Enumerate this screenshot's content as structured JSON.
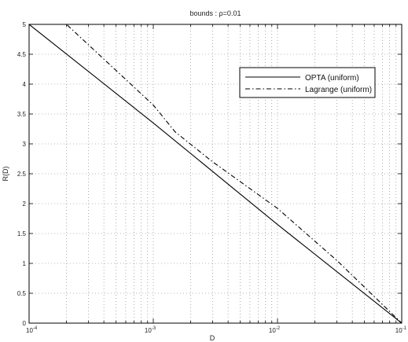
{
  "chart_data": {
    "type": "line",
    "title": "bounds : ρ=0.01",
    "xlabel": "D",
    "ylabel": "R(D)",
    "x_scale": "log",
    "xlim": [
      0.0001,
      0.1
    ],
    "ylim": [
      0,
      5
    ],
    "grid": true,
    "legend_position": "top-right",
    "x_ticks": [
      {
        "value": 0.0001,
        "base": "10",
        "exp": "-4"
      },
      {
        "value": 0.001,
        "base": "10",
        "exp": "-3"
      },
      {
        "value": 0.01,
        "base": "10",
        "exp": "-2"
      },
      {
        "value": 0.1,
        "base": "10",
        "exp": "-1"
      }
    ],
    "y_ticks": [
      {
        "value": 0,
        "label": "0"
      },
      {
        "value": 0.5,
        "label": "0.5"
      },
      {
        "value": 1,
        "label": "1"
      },
      {
        "value": 1.5,
        "label": "1.5"
      },
      {
        "value": 2,
        "label": "2"
      },
      {
        "value": 2.5,
        "label": "2.5"
      },
      {
        "value": 3,
        "label": "3"
      },
      {
        "value": 3.5,
        "label": "3.5"
      },
      {
        "value": 4,
        "label": "4"
      },
      {
        "value": 4.5,
        "label": "4.5"
      },
      {
        "value": 5,
        "label": "5"
      }
    ],
    "series": [
      {
        "name": "OPTA (uniform)",
        "line_style": "solid",
        "color": "#000000",
        "points": [
          [
            0.0001,
            5.0
          ],
          [
            0.001,
            3.35
          ],
          [
            0.01,
            1.65
          ],
          [
            0.1,
            0.0
          ]
        ]
      },
      {
        "name": "Lagrange (uniform)",
        "line_style": "dashdot",
        "color": "#000000",
        "points": [
          [
            0.0001,
            5.3
          ],
          [
            0.0002,
            5.0
          ],
          [
            0.001,
            3.65
          ],
          [
            0.0015,
            3.2
          ],
          [
            0.003,
            2.7
          ],
          [
            0.01,
            1.92
          ],
          [
            0.03,
            1.05
          ],
          [
            0.1,
            0.0
          ]
        ]
      }
    ]
  }
}
